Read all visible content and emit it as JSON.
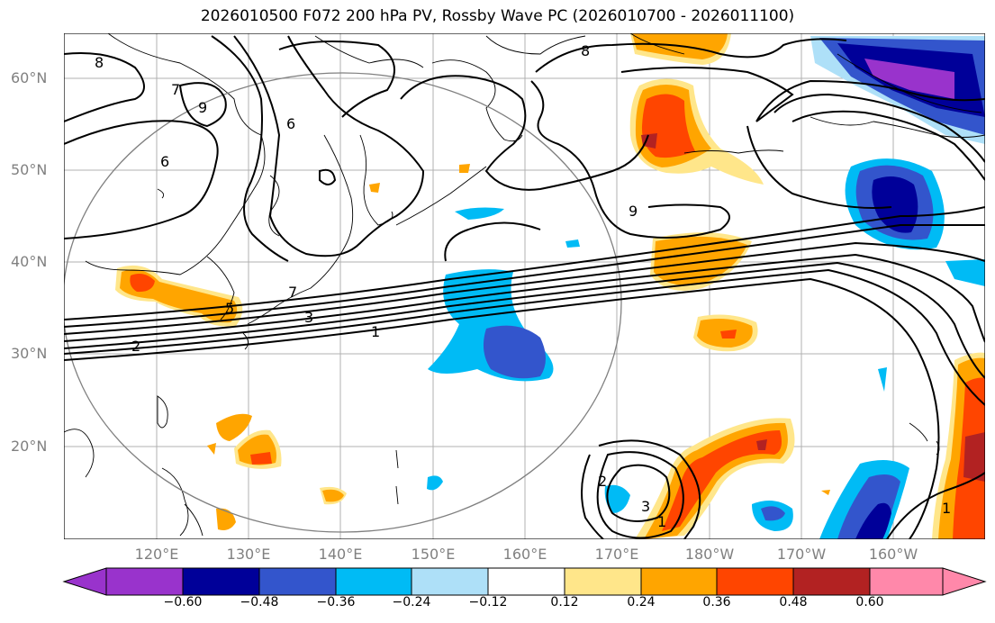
{
  "title": "2026010500 F072 200 hPa PV, Rossby Wave PC (2026010700 - 2026011100)",
  "lat_labels": [
    "60°N",
    "50°N",
    "40°N",
    "30°N",
    "20°N"
  ],
  "lon_labels": [
    "120°E",
    "130°E",
    "140°E",
    "150°E",
    "160°E",
    "170°E",
    "180°W",
    "170°W",
    "160°W"
  ],
  "contour_labels": [
    "8",
    "7",
    "9",
    "6",
    "6",
    "8",
    "9",
    "7",
    "5",
    "3",
    "2",
    "1",
    "2",
    "3",
    "1",
    "1"
  ],
  "colorbar": {
    "ticks": [
      "−0.60",
      "−0.48",
      "−0.36",
      "−0.24",
      "−0.12",
      "0.12",
      "0.24",
      "0.36",
      "0.48",
      "0.60"
    ],
    "colors": [
      "#9933cc",
      "#000099",
      "#3355cc",
      "#00bbf5",
      "#aee0f8",
      "#ffffff",
      "#ffe68a",
      "#ffa500",
      "#ff4500",
      "#b22222",
      "#ff88aa"
    ]
  },
  "palette": {
    "neg_strong": "#000099",
    "neg_med": "#3355cc",
    "neg_light": "#00bbf5",
    "neg_faint": "#aee0f8",
    "pos_faint": "#ffe68a",
    "pos_light": "#ffa500",
    "pos_med": "#ff4500",
    "pos_strong": "#b22222",
    "neg_extreme": "#9933cc"
  }
}
